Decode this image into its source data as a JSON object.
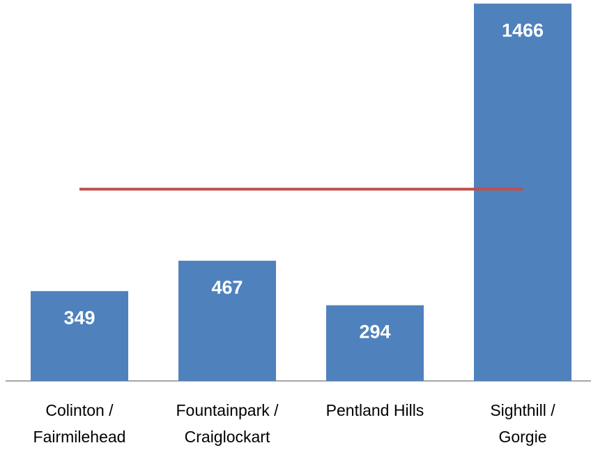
{
  "chart_data": {
    "type": "bar",
    "categories": [
      [
        "Colinton /",
        "Fairmilehead"
      ],
      [
        "Fountainpark /",
        "Craiglockart"
      ],
      [
        "Pentland Hills"
      ],
      [
        "Sighthill /",
        "Gorgie"
      ]
    ],
    "values": [
      349,
      467,
      294,
      1466
    ],
    "color": "#4f81bd",
    "line": {
      "type": "line",
      "color": "#c0504d",
      "values": [
        745,
        745,
        745,
        745
      ]
    },
    "ylim": [
      0,
      1480
    ]
  }
}
